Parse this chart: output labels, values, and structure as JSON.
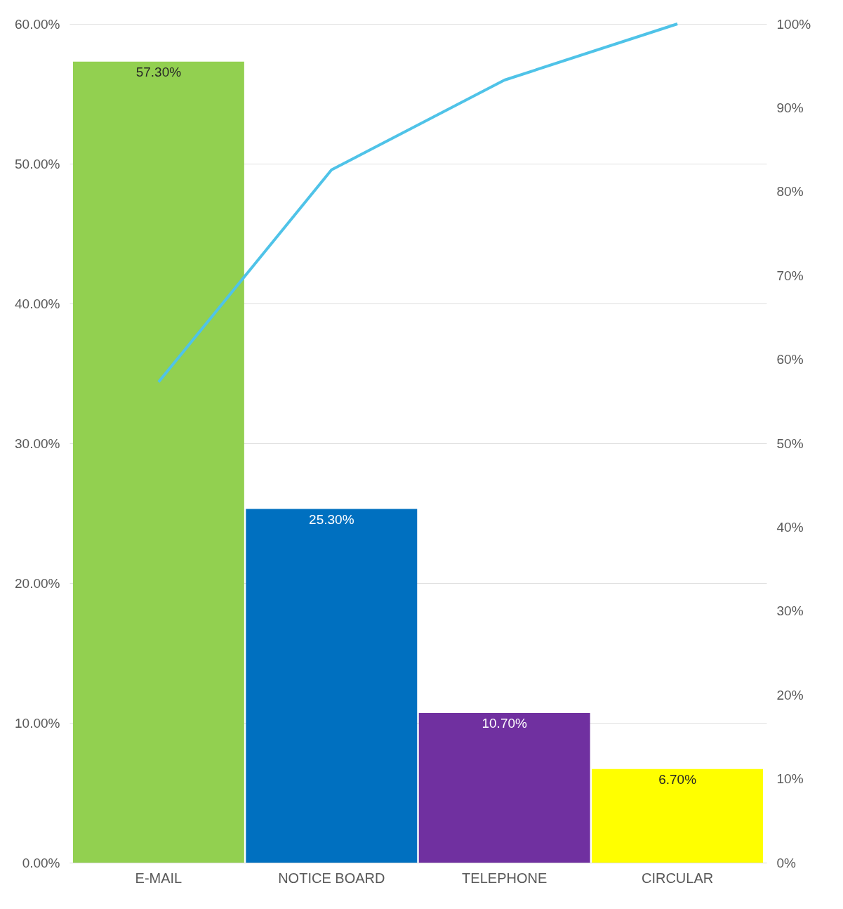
{
  "chart_data": {
    "type": "bar",
    "categories": [
      "E-MAIL",
      "NOTICE BOARD",
      "TELEPHONE",
      "CIRCULAR"
    ],
    "series": [
      {
        "values": [
          57.3,
          25.3,
          10.7,
          6.7
        ],
        "colors": [
          "#92d050",
          "#0070c0",
          "#7030a0",
          "#ffff00"
        ],
        "value_labels": [
          "57.30%",
          "25.30%",
          "10.70%",
          "6.70%"
        ]
      },
      {
        "type": "line",
        "axis": "y2",
        "color": "#4fc3e8",
        "values": [
          57.3,
          82.6,
          93.3,
          100
        ]
      }
    ],
    "ylim": [
      0,
      60
    ],
    "yticks": [
      {
        "value": 0,
        "label": "0.00%"
      },
      {
        "value": 10,
        "label": "10.00%"
      },
      {
        "value": 20,
        "label": "20.00%"
      },
      {
        "value": 30,
        "label": "30.00%"
      },
      {
        "value": 40,
        "label": "40.00%"
      },
      {
        "value": 50,
        "label": "50.00%"
      },
      {
        "value": 60,
        "label": "60.00%"
      }
    ],
    "y2lim": [
      0,
      100
    ],
    "y2ticks": [
      {
        "value": 0,
        "label": "0%"
      },
      {
        "value": 10,
        "label": "10%"
      },
      {
        "value": 20,
        "label": "20%"
      },
      {
        "value": 30,
        "label": "30%"
      },
      {
        "value": 40,
        "label": "40%"
      },
      {
        "value": 50,
        "label": "50%"
      },
      {
        "value": 60,
        "label": "60%"
      },
      {
        "value": 70,
        "label": "70%"
      },
      {
        "value": 80,
        "label": "80%"
      },
      {
        "value": 90,
        "label": "90%"
      },
      {
        "value": 100,
        "label": "100%"
      }
    ],
    "grid": "y",
    "marker": "none",
    "line_style": "solid"
  }
}
